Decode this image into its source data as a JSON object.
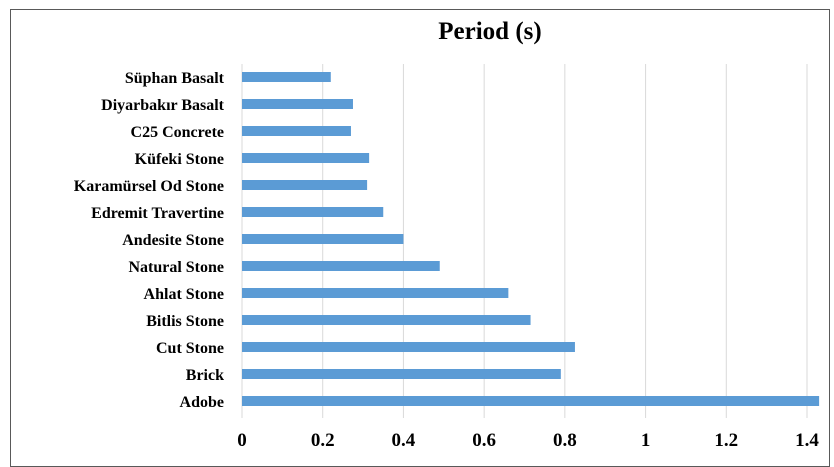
{
  "chart_data": {
    "type": "bar",
    "orientation": "horizontal",
    "title": "Period (s)",
    "xlabel": "",
    "ylabel": "",
    "categories": [
      "Süphan Basalt",
      "Diyarbakır Basalt",
      "C25 Concrete",
      "Küfeki Stone",
      "Karamürsel Od Stone ",
      "Edremit Travertine",
      "Andesite Stone",
      "Natural Stone",
      "Ahlat Stone",
      "Bitlis Stone",
      "Cut Stone",
      "Brick",
      "Adobe"
    ],
    "values": [
      0.22,
      0.275,
      0.27,
      0.315,
      0.31,
      0.35,
      0.4,
      0.49,
      0.66,
      0.715,
      0.825,
      0.79,
      1.43
    ],
    "xlim": [
      0,
      1.4
    ],
    "xticks": [
      "0",
      "0.2",
      "0.4",
      "0.6",
      "0.8",
      "1",
      "1.2",
      "1.4"
    ],
    "grid": "vertical",
    "legend": "none",
    "bar_color": "#5B9BD5",
    "grid_color": "#D9D9D9"
  }
}
